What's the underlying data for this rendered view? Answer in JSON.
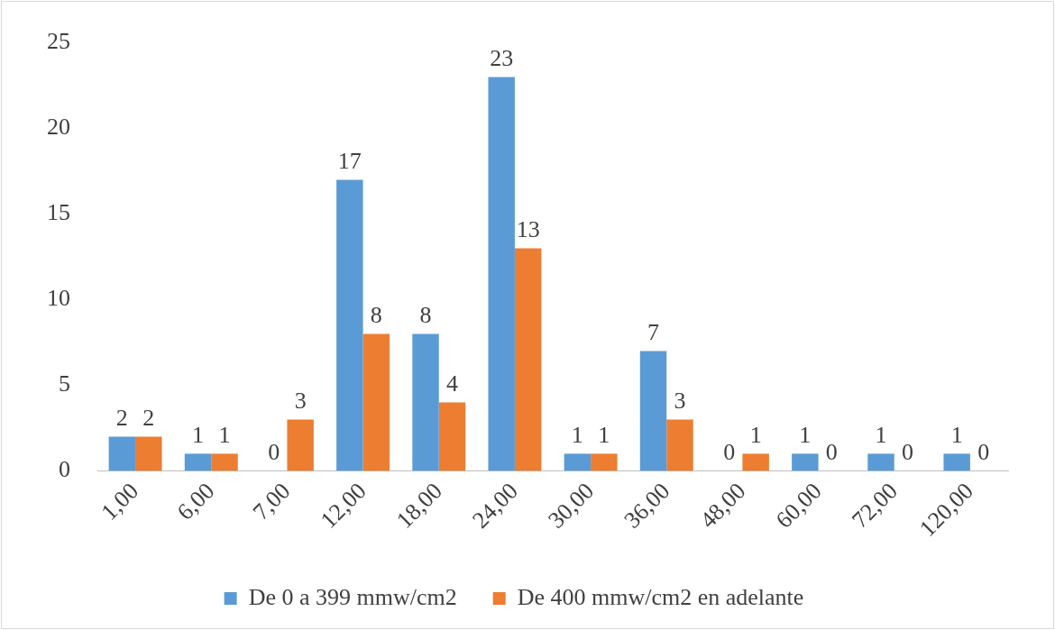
{
  "chart_data": {
    "type": "bar",
    "categories": [
      "1,00",
      "6,00",
      "7,00",
      "12,00",
      "18,00",
      "24,00",
      "30,00",
      "36,00",
      "48,00",
      "60,00",
      "72,00",
      "120,00"
    ],
    "series": [
      {
        "name": "De 0 a 399 mmw/cm2",
        "color": "#5b9bd5",
        "values": [
          2,
          1,
          0,
          17,
          8,
          23,
          1,
          7,
          0,
          1,
          1,
          1
        ]
      },
      {
        "name": "De 400 mmw/cm2 en adelante",
        "color": "#ed7d31",
        "values": [
          2,
          1,
          3,
          8,
          4,
          13,
          1,
          3,
          1,
          0,
          0,
          0
        ]
      }
    ],
    "ylim": [
      0,
      25
    ],
    "yticks": [
      0,
      5,
      10,
      15,
      20,
      25
    ],
    "grid": false,
    "legend": "bottom",
    "data_labels": true
  }
}
